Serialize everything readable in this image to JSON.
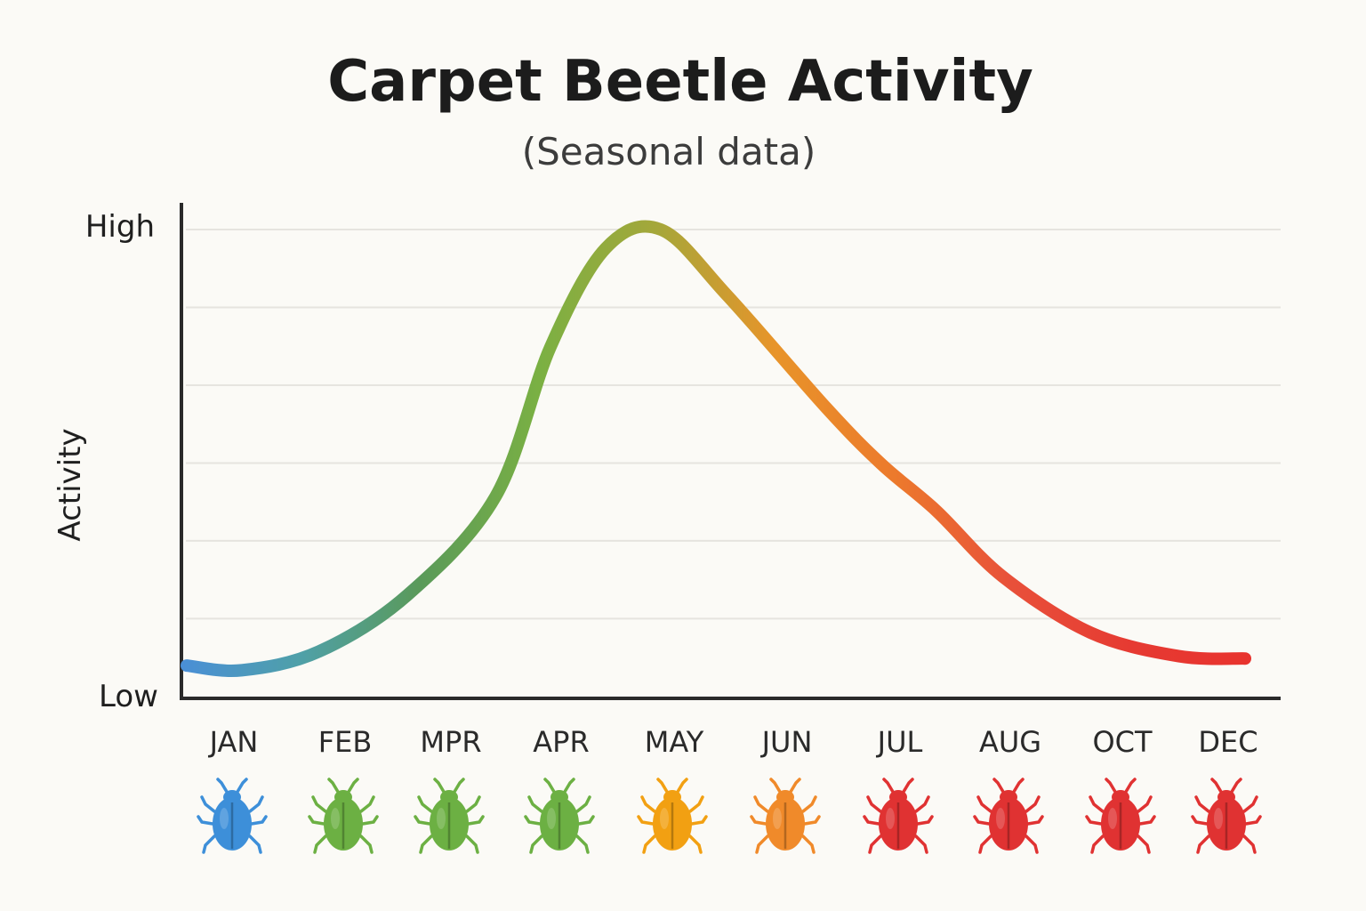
{
  "chart_data": {
    "type": "line",
    "title": "Carpet Beetle Activity",
    "subtitle": "(Seasonal data)",
    "xlabel": "",
    "ylabel": "Activity",
    "y_tick_labels": {
      "high": "High",
      "low": "Low"
    },
    "ylim": [
      0,
      100
    ],
    "grid": true,
    "categories": [
      "JAN",
      "FEB",
      "MPR",
      "APR",
      "MAY",
      "JUN",
      "JUL",
      "AUG",
      "OCT",
      "DEC"
    ],
    "series": [
      {
        "values": [
          7,
          6,
          10,
          22,
          43,
          75,
          96,
          100,
          86,
          62,
          50,
          40,
          26,
          14,
          9,
          8.5
        ],
        "x": [
          0,
          0.5,
          1.2,
          2,
          2.8,
          3.3,
          3.8,
          4.3,
          4.9,
          5.8,
          6.3,
          6.8,
          7.4,
          8.2,
          9.0,
          9.6
        ]
      }
    ],
    "gradient_colors": [
      "#4a8fd6",
      "#4fa0a8",
      "#5a9a5a",
      "#7ab043",
      "#a5a73a",
      "#e8942a",
      "#ec7a2c",
      "#e8503a",
      "#e63a32",
      "#e8332e"
    ],
    "beetle_icons": [
      {
        "month": "JAN",
        "icon": "beetle-icon",
        "color": "#3d8fd9"
      },
      {
        "month": "FEB",
        "icon": "beetle-icon",
        "color": "#6cb043"
      },
      {
        "month": "MPR",
        "icon": "beetle-icon",
        "color": "#6cb043"
      },
      {
        "month": "APR",
        "icon": "beetle-icon",
        "color": "#6cb043"
      },
      {
        "month": "MAY",
        "icon": "beetle-icon",
        "color": "#f2a012"
      },
      {
        "month": "JUN",
        "icon": "beetle-icon",
        "color": "#f08a2a"
      },
      {
        "month": "JUL",
        "icon": "beetle-icon",
        "color": "#e03232"
      },
      {
        "month": "AUG",
        "icon": "beetle-icon",
        "color": "#e03232"
      },
      {
        "month": "OCT",
        "icon": "beetle-icon",
        "color": "#e03232"
      },
      {
        "month": "DEC",
        "icon": "beetle-icon",
        "color": "#e03232"
      }
    ]
  }
}
